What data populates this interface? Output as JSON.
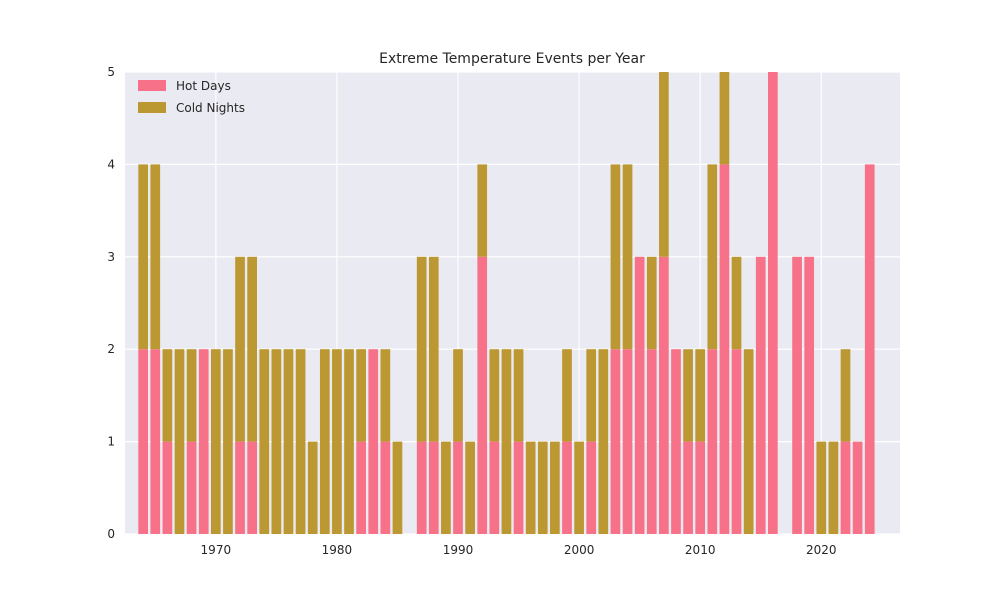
{
  "chart_data": {
    "type": "bar",
    "stacked": true,
    "title": "Extreme Temperature Events per Year",
    "xlabel": "",
    "ylabel": "",
    "xlim": [
      1962.5,
      2026.5
    ],
    "ylim": [
      0,
      5
    ],
    "x_ticks": [
      1970,
      1980,
      1990,
      2000,
      2010,
      2020
    ],
    "y_ticks": [
      0,
      1,
      2,
      3,
      4,
      5
    ],
    "grid": true,
    "legend_position": "top-left",
    "years": [
      1964,
      1965,
      1966,
      1967,
      1968,
      1969,
      1970,
      1971,
      1972,
      1973,
      1974,
      1975,
      1976,
      1977,
      1978,
      1979,
      1980,
      1981,
      1982,
      1983,
      1984,
      1985,
      1986,
      1987,
      1988,
      1989,
      1990,
      1991,
      1992,
      1993,
      1994,
      1995,
      1996,
      1997,
      1998,
      1999,
      2000,
      2001,
      2002,
      2003,
      2004,
      2005,
      2006,
      2007,
      2008,
      2009,
      2010,
      2011,
      2012,
      2013,
      2014,
      2015,
      2016,
      2017,
      2018,
      2019,
      2020,
      2021,
      2022,
      2023,
      2024
    ],
    "series": [
      {
        "name": "Hot Days",
        "color": "#f77189",
        "values": [
          2,
          2,
          1,
          0,
          1,
          2,
          0,
          0,
          1,
          1,
          0,
          0,
          0,
          0,
          0,
          0,
          0,
          0,
          1,
          2,
          1,
          0,
          0,
          1,
          1,
          0,
          1,
          0,
          3,
          1,
          0,
          1,
          0,
          0,
          0,
          1,
          0,
          1,
          0,
          2,
          2,
          3,
          2,
          3,
          2,
          1,
          1,
          2,
          4,
          2,
          0,
          3,
          5,
          0,
          3,
          3,
          0,
          0,
          1,
          1,
          4
        ]
      },
      {
        "name": "Cold Nights",
        "color": "#bb9832",
        "values": [
          2,
          2,
          1,
          2,
          1,
          0,
          2,
          2,
          2,
          2,
          2,
          2,
          2,
          2,
          1,
          2,
          2,
          2,
          1,
          0,
          1,
          1,
          0,
          2,
          2,
          1,
          1,
          1,
          1,
          1,
          2,
          1,
          1,
          1,
          1,
          1,
          1,
          1,
          2,
          2,
          2,
          0,
          1,
          2,
          0,
          1,
          1,
          2,
          1,
          1,
          2,
          0,
          0,
          0,
          0,
          0,
          1,
          1,
          1,
          0,
          0
        ]
      }
    ]
  }
}
